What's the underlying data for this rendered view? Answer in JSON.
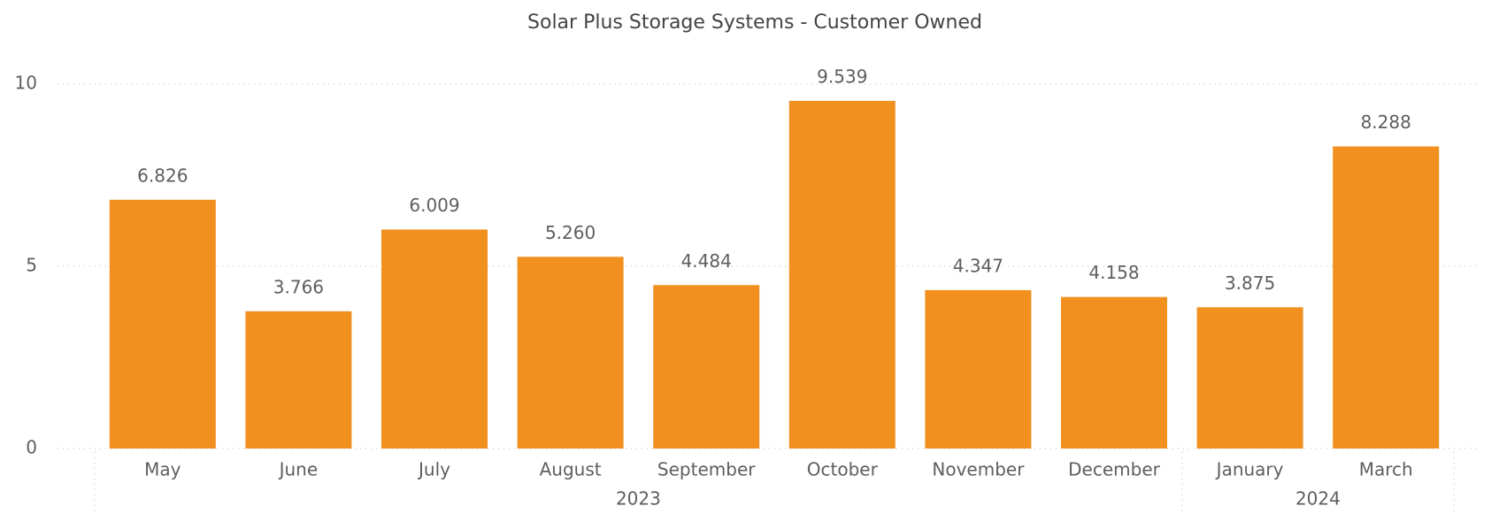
{
  "chart_data": {
    "type": "bar",
    "title": "Solar Plus Storage Systems - Customer Owned",
    "categories": [
      "May",
      "June",
      "July",
      "August",
      "September",
      "October",
      "November",
      "December",
      "January",
      "March"
    ],
    "values": [
      6.826,
      3.766,
      6.009,
      5.26,
      4.484,
      9.539,
      4.347,
      4.158,
      3.875,
      8.288
    ],
    "value_labels": [
      "6.826",
      "3.766",
      "6.009",
      "5.260",
      "4.484",
      "9.539",
      "4.347",
      "4.158",
      "3.875",
      "8.288"
    ],
    "x_groups": [
      {
        "label": "2023",
        "size": 8
      },
      {
        "label": "2024",
        "size": 2
      }
    ],
    "color": "#f18f1f",
    "ylim": [
      0,
      10
    ],
    "yticks": [
      0,
      5,
      10
    ],
    "grid": true
  }
}
